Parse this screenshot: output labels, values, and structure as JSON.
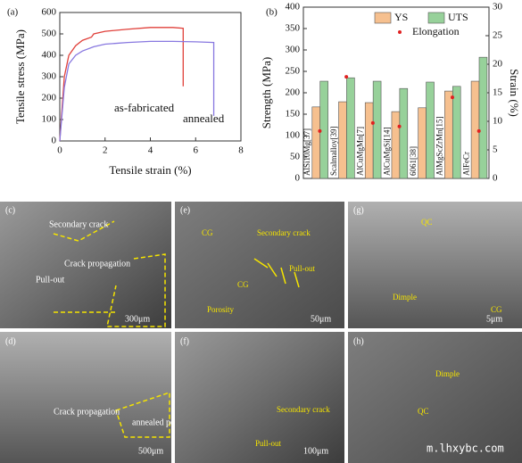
{
  "chart_data": [
    {
      "type": "line",
      "label": "(a)",
      "y_label": "Tensile stress (MPa)",
      "x_label": "Tensile strain (%)",
      "xlim": [
        0,
        8
      ],
      "xticks": [
        0,
        2,
        4,
        6,
        8
      ],
      "ylim": [
        0,
        600
      ],
      "yticks": [
        0,
        100,
        200,
        300,
        400,
        500,
        600
      ],
      "annotations": [
        "as-fabricated",
        "annealed"
      ],
      "series": [
        {
          "name": "as-fabricated",
          "color": "#e0403a",
          "x": [
            0,
            0.2,
            0.4,
            0.7,
            1.0,
            1.4,
            1.5,
            2.0,
            3.0,
            4.0,
            5.0,
            5.45,
            5.45
          ],
          "values": [
            0,
            300,
            400,
            445,
            470,
            485,
            500,
            512,
            522,
            530,
            530,
            526,
            255
          ]
        },
        {
          "name": "annealed",
          "color": "#8878e0",
          "x": [
            0,
            0.2,
            0.4,
            0.7,
            1.0,
            1.5,
            2.0,
            3.0,
            4.0,
            5.0,
            6.0,
            6.8,
            6.8
          ],
          "values": [
            0,
            250,
            360,
            400,
            420,
            440,
            452,
            460,
            465,
            465,
            463,
            460,
            117
          ]
        }
      ]
    },
    {
      "type": "bar",
      "label": "(b)",
      "y_label": "Strength (MPa)",
      "y2_label": "Strain (%)",
      "categories": [
        "AlSi10Mg[37]",
        "Scalmalloy[39]",
        "AlCuMgMn[7]",
        "AlCuMgSi[14]",
        "6061[38]",
        "AlMgScZrMn[15]",
        "AlFeCr"
      ],
      "ylim": [
        0,
        400
      ],
      "yticks": [
        0,
        50,
        100,
        150,
        200,
        250,
        300,
        350,
        400
      ],
      "y2lim": [
        0,
        30
      ],
      "y2ticks": [
        0,
        5,
        10,
        15,
        20,
        25,
        30
      ],
      "series": [
        {
          "name": "YS",
          "color": "#f6c08f",
          "values": [
            167,
            179,
            177,
            156,
            165,
            204,
            227
          ]
        },
        {
          "name": "UTS",
          "color": "#97d19a",
          "values": [
            227,
            235,
            227,
            210,
            225,
            215,
            283
          ]
        },
        {
          "name": "Elongation",
          "color": "#e02020",
          "axis": "y2",
          "values": [
            8.3,
            17.8,
            9.7,
            9.1,
            null,
            14.2,
            8.3
          ]
        }
      ]
    }
  ],
  "panels": [
    {
      "label": "(c)",
      "notes": [
        "Secondary crack",
        "Crack propagation",
        "Pull-out"
      ],
      "scale": "300μm"
    },
    {
      "label": "(d)",
      "notes": [
        "Crack propagation",
        "annealed powder"
      ],
      "scale": "500μm"
    },
    {
      "label": "(e)",
      "notes": [
        "CG",
        "Secondary crack",
        "Pull-out",
        "CG",
        "Porosity"
      ],
      "scale": "50μm"
    },
    {
      "label": "(f)",
      "notes": [
        "Secondary crack",
        "Pull-out"
      ],
      "scale": "100μm"
    },
    {
      "label": "(g)",
      "notes": [
        "QC",
        "Dimple",
        "CG"
      ],
      "scale": "5μm"
    },
    {
      "label": "(h)",
      "notes": [
        "Dimple",
        "QC"
      ],
      "scale": ""
    }
  ],
  "watermark": "m.lhxybc.com"
}
